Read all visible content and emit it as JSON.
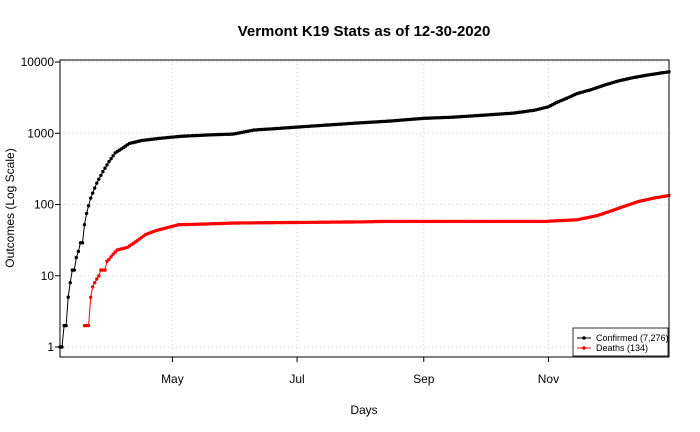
{
  "chart_data": {
    "type": "scatter",
    "title": "Vermont K19 Stats as of 12-30-2020",
    "xlabel": "Days",
    "ylabel": "Outcomes (Log Scale)",
    "y_scale": "log",
    "ylim": [
      1,
      10000
    ],
    "xlim": [
      "2020-03-07",
      "2020-12-30"
    ],
    "y_ticks": [
      {
        "value": 1,
        "label": "1"
      },
      {
        "value": 10,
        "label": "10"
      },
      {
        "value": 100,
        "label": "100"
      },
      {
        "value": 1000,
        "label": "1000"
      },
      {
        "value": 10000,
        "label": "10000"
      }
    ],
    "x_ticks": [
      {
        "date": "2020-05-01",
        "label": "May"
      },
      {
        "date": "2020-07-01",
        "label": "Jul"
      },
      {
        "date": "2020-09-01",
        "label": "Sep"
      },
      {
        "date": "2020-11-01",
        "label": "Nov"
      }
    ],
    "grid": true,
    "legend_position": "bottom-right",
    "legend": [
      {
        "series": "confirmed",
        "label": "Confirmed (7,276)"
      },
      {
        "series": "deaths",
        "label": "Deaths (134)"
      }
    ],
    "series": [
      {
        "key": "confirmed",
        "color": "#000000",
        "anchors": [
          [
            "2020-03-07",
            1
          ],
          [
            "2020-03-08",
            1
          ],
          [
            "2020-03-09",
            2
          ],
          [
            "2020-03-10",
            2
          ],
          [
            "2020-03-11",
            5
          ],
          [
            "2020-03-12",
            8
          ],
          [
            "2020-03-13",
            12
          ],
          [
            "2020-03-14",
            12
          ],
          [
            "2020-03-15",
            18
          ],
          [
            "2020-03-16",
            22
          ],
          [
            "2020-03-17",
            29
          ],
          [
            "2020-03-18",
            29
          ],
          [
            "2020-03-19",
            52
          ],
          [
            "2020-03-20",
            75
          ],
          [
            "2020-03-22",
            123
          ],
          [
            "2020-03-25",
            200
          ],
          [
            "2020-03-28",
            290
          ],
          [
            "2020-03-31",
            400
          ],
          [
            "2020-04-03",
            530
          ],
          [
            "2020-04-07",
            630
          ],
          [
            "2020-04-10",
            720
          ],
          [
            "2020-04-16",
            790
          ],
          [
            "2020-04-25",
            850
          ],
          [
            "2020-05-05",
            905
          ],
          [
            "2020-05-20",
            950
          ],
          [
            "2020-05-31",
            975
          ],
          [
            "2020-06-05",
            1040
          ],
          [
            "2020-06-10",
            1110
          ],
          [
            "2020-06-20",
            1160
          ],
          [
            "2020-07-01",
            1220
          ],
          [
            "2020-07-15",
            1300
          ],
          [
            "2020-08-01",
            1400
          ],
          [
            "2020-08-15",
            1480
          ],
          [
            "2020-09-01",
            1620
          ],
          [
            "2020-09-15",
            1680
          ],
          [
            "2020-10-01",
            1800
          ],
          [
            "2020-10-15",
            1920
          ],
          [
            "2020-10-25",
            2100
          ],
          [
            "2020-11-01",
            2350
          ],
          [
            "2020-11-05",
            2700
          ],
          [
            "2020-11-10",
            3100
          ],
          [
            "2020-11-15",
            3600
          ],
          [
            "2020-11-22",
            4100
          ],
          [
            "2020-11-28",
            4700
          ],
          [
            "2020-12-05",
            5400
          ],
          [
            "2020-12-12",
            6000
          ],
          [
            "2020-12-20",
            6600
          ],
          [
            "2020-12-30",
            7276
          ]
        ]
      },
      {
        "key": "deaths",
        "color": "#ff0000",
        "anchors": [
          [
            "2020-03-19",
            2
          ],
          [
            "2020-03-20",
            2
          ],
          [
            "2020-03-21",
            2
          ],
          [
            "2020-03-22",
            5
          ],
          [
            "2020-03-23",
            7
          ],
          [
            "2020-03-24",
            8
          ],
          [
            "2020-03-25",
            9
          ],
          [
            "2020-03-26",
            10
          ],
          [
            "2020-03-27",
            12
          ],
          [
            "2020-03-29",
            12
          ],
          [
            "2020-03-30",
            16
          ],
          [
            "2020-03-31",
            17
          ],
          [
            "2020-04-02",
            20
          ],
          [
            "2020-04-04",
            23
          ],
          [
            "2020-04-09",
            25
          ],
          [
            "2020-04-13",
            30
          ],
          [
            "2020-04-18",
            38
          ],
          [
            "2020-04-23",
            43
          ],
          [
            "2020-04-28",
            47
          ],
          [
            "2020-05-04",
            52
          ],
          [
            "2020-05-15",
            53
          ],
          [
            "2020-06-01",
            55
          ],
          [
            "2020-07-01",
            56
          ],
          [
            "2020-08-01",
            57
          ],
          [
            "2020-08-15",
            58
          ],
          [
            "2020-10-31",
            58
          ],
          [
            "2020-11-05",
            59
          ],
          [
            "2020-11-15",
            61
          ],
          [
            "2020-11-25",
            70
          ],
          [
            "2020-12-01",
            80
          ],
          [
            "2020-12-08",
            94
          ],
          [
            "2020-12-15",
            110
          ],
          [
            "2020-12-22",
            122
          ],
          [
            "2020-12-30",
            134
          ]
        ]
      }
    ]
  }
}
